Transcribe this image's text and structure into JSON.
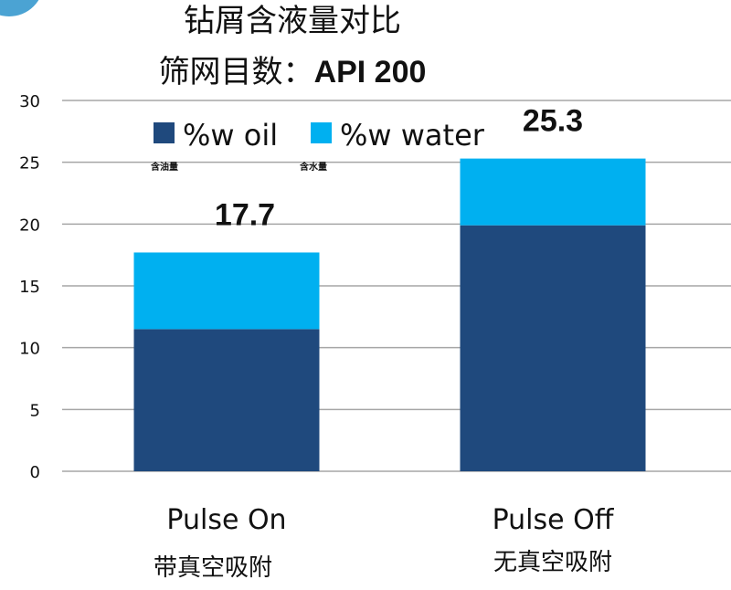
{
  "chart_data": {
    "type": "bar",
    "stacked": true,
    "title": "钻屑含液量对比",
    "subtitle": "筛网目数：API 200",
    "categories": [
      "Pulse On",
      "Pulse Off"
    ],
    "category_sublabels": [
      "带真空吸附",
      "无真空吸附"
    ],
    "series": [
      {
        "name": "%w oil",
        "sublabel": "含油量",
        "color": "#1F497D",
        "values": [
          11.5,
          19.9
        ]
      },
      {
        "name": "%w water",
        "sublabel": "含水量",
        "color": "#00B0F0",
        "values": [
          6.2,
          5.4
        ]
      }
    ],
    "totals": [
      "17.7",
      "25.3"
    ],
    "ylim": [
      0,
      30
    ],
    "yticks": [
      0,
      5,
      10,
      15,
      20,
      25,
      30
    ],
    "grid": true,
    "legend_position": "top",
    "xlabel": "",
    "ylabel": ""
  },
  "decoration": {
    "corner_circle_color": "#4BA3D3"
  }
}
